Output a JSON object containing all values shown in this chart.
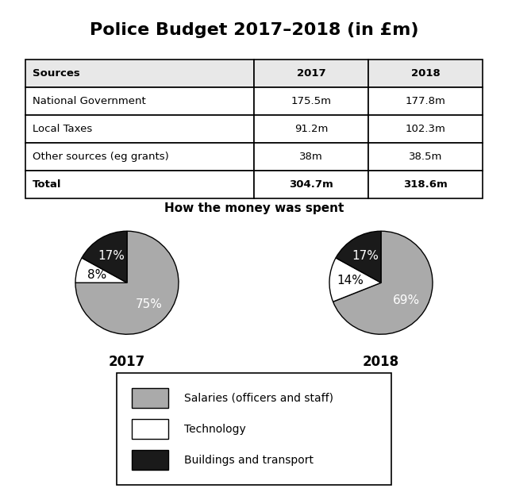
{
  "title": "Police Budget 2017–2018 (in £m)",
  "table": {
    "headers": [
      "Sources",
      "2017",
      "2018"
    ],
    "rows": [
      [
        "National Government",
        "175.5m",
        "177.8m"
      ],
      [
        "Local Taxes",
        "91.2m",
        "102.3m"
      ],
      [
        "Other sources (eg grants)",
        "38m",
        "38.5m"
      ],
      [
        "Total",
        "304.7m",
        "318.6m"
      ]
    ]
  },
  "pie_title": "How the money was spent",
  "pie_2017": {
    "label": "2017",
    "values": [
      75,
      8,
      17
    ],
    "labels": [
      "75%",
      "8%",
      "17%"
    ],
    "colors": [
      "#aaaaaa",
      "#ffffff",
      "#1a1a1a"
    ],
    "startangle": 90
  },
  "pie_2018": {
    "label": "2018",
    "values": [
      69,
      14,
      17
    ],
    "labels": [
      "69%",
      "14%",
      "17%"
    ],
    "colors": [
      "#aaaaaa",
      "#ffffff",
      "#1a1a1a"
    ],
    "startangle": 90
  },
  "legend_labels": [
    "Salaries (officers and staff)",
    "Technology",
    "Buildings and transport"
  ],
  "legend_colors": [
    "#aaaaaa",
    "#ffffff",
    "#1a1a1a"
  ],
  "background_color": "#ffffff"
}
